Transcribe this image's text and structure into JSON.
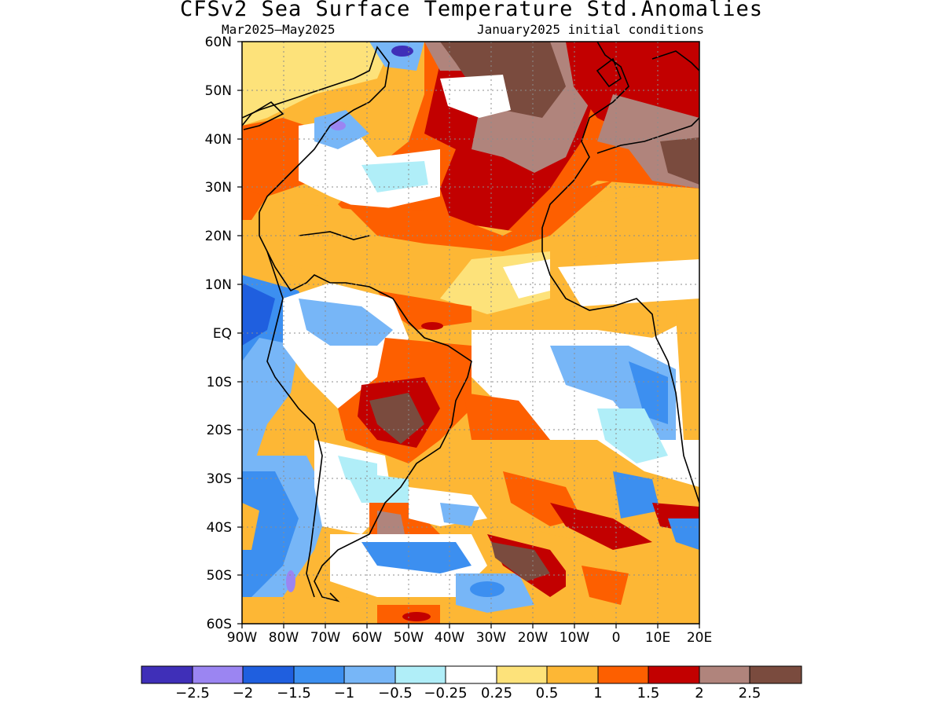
{
  "title": "CFSv2 Sea Surface Temperature Std.Anomalies",
  "subtitle_left": "Mar2025–May2025",
  "subtitle_right": "January2025 initial conditions",
  "lat_labels": [
    "60N",
    "50N",
    "40N",
    "30N",
    "20N",
    "10N",
    "EQ",
    "10S",
    "20S",
    "30S",
    "40S",
    "50S",
    "60S"
  ],
  "lon_labels": [
    "90W",
    "80W",
    "70W",
    "60W",
    "50W",
    "40W",
    "30W",
    "20W",
    "10W",
    "0",
    "10E",
    "20E"
  ],
  "colorbar": {
    "labels": [
      "−2.5",
      "−2",
      "−1.5",
      "−1",
      "−0.5",
      "−0.25",
      "0.25",
      "0.5",
      "1",
      "1.5",
      "2",
      "2.5"
    ],
    "colors": [
      "#3f2fb8",
      "#9b85f2",
      "#1f5fdf",
      "#3c8ff0",
      "#77b6f7",
      "#b0eef8",
      "#ffffff",
      "#fde27a",
      "#fdb735",
      "#fd5f00",
      "#c20000",
      "#b0847c",
      "#7a4b3e"
    ]
  },
  "map": {
    "lat_range": [
      -60,
      60
    ],
    "lon_range": [
      -90,
      20
    ],
    "projection": "lat-lon"
  }
}
